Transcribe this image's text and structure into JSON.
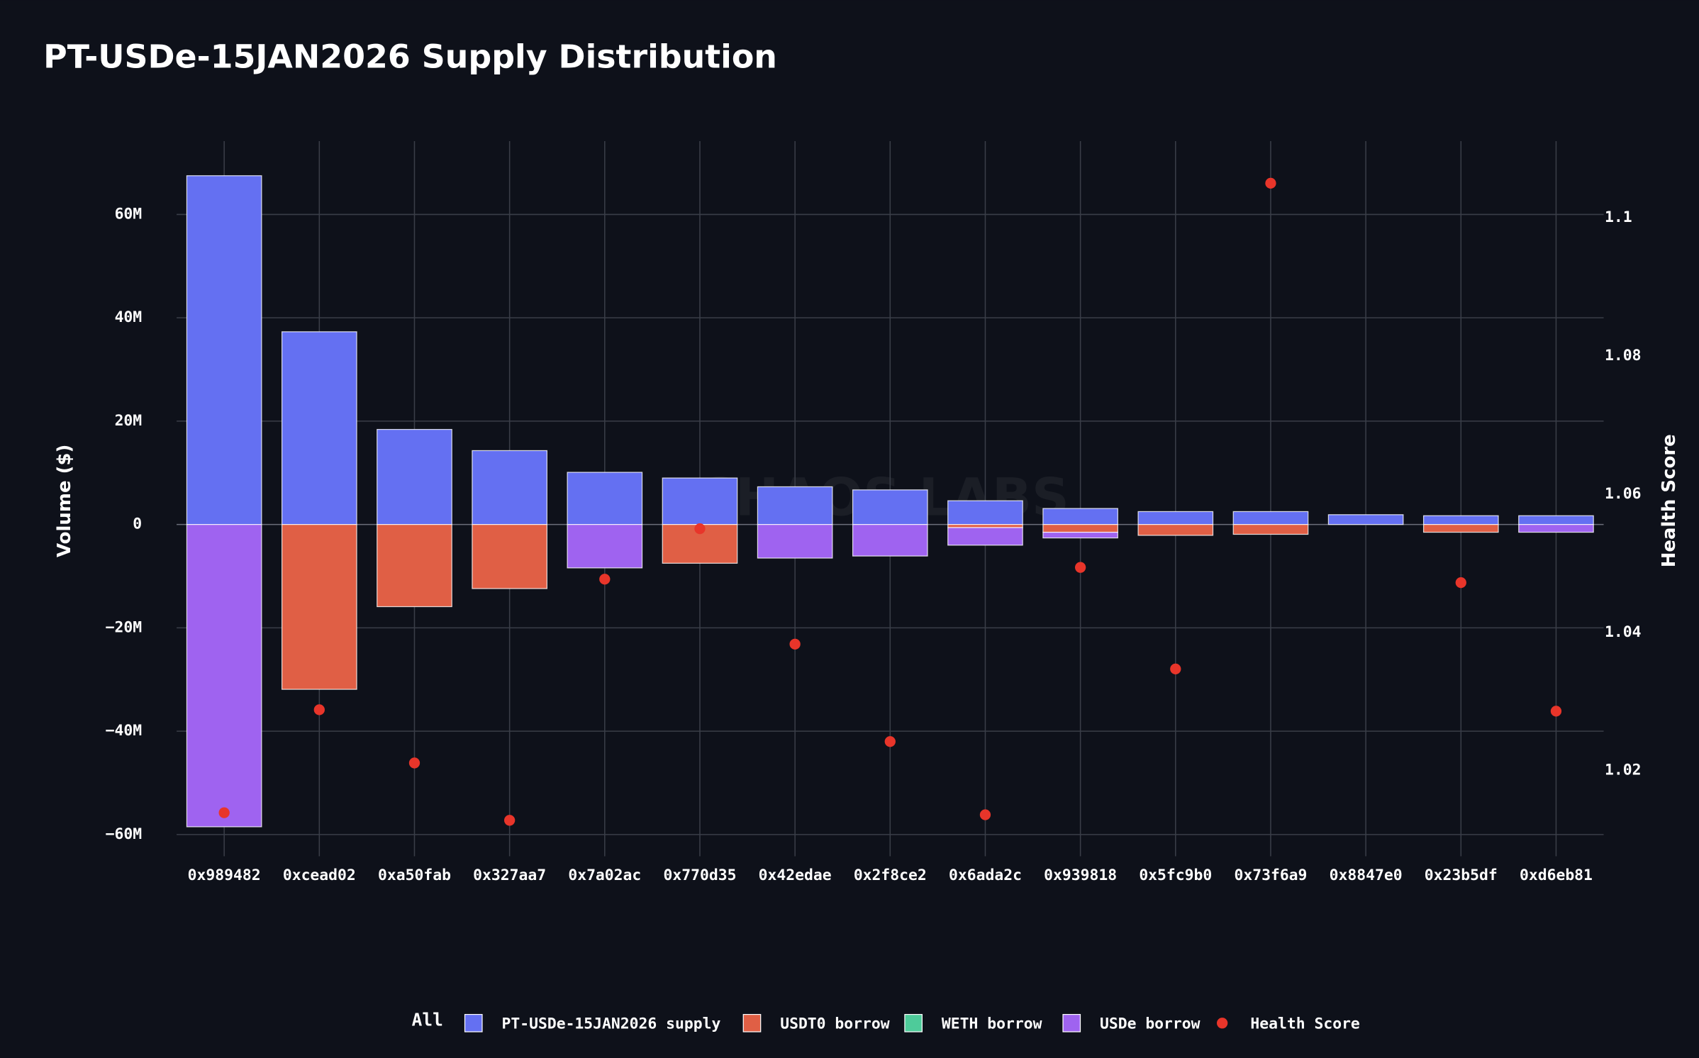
{
  "chart_data": {
    "type": "bar",
    "title": "PT-USDe-15JAN2026 Supply Distribution",
    "watermark": "CHAOS LABS",
    "y_label": "Volume ($)",
    "y2_label": "Health Score",
    "legend_toggle": "All",
    "categories": [
      "0x989482",
      "0xcead02",
      "0xa50fab",
      "0x327aa7",
      "0x7a02ac",
      "0x770d35",
      "0x42edae",
      "0x2f8ce2",
      "0x6ada2c",
      "0x939818",
      "0x5fc9b0",
      "0x73f6a9",
      "0x8847e0",
      "0x23b5df",
      "0xd6eb81"
    ],
    "series": [
      {
        "name": "PT-USDe-15JAN2026 supply",
        "type": "bar",
        "color": "#6470f2",
        "values": [
          67500000,
          37300000,
          18400000,
          14300000,
          10100000,
          9000000,
          7300000,
          6700000,
          4600000,
          3100000,
          2500000,
          2500000,
          1900000,
          1700000,
          1700000
        ]
      },
      {
        "name": "USDT0 borrow",
        "type": "bar",
        "color": "#e05f45",
        "values": [
          0,
          -31900000,
          -15900000,
          -12400000,
          0,
          -7500000,
          0,
          0,
          -600000,
          -1500000,
          -2100000,
          -1900000,
          0,
          -1500000,
          0
        ]
      },
      {
        "name": "WETH borrow",
        "type": "bar",
        "color": "#4ecb9a",
        "values": [
          0,
          0,
          0,
          0,
          0,
          0,
          0,
          0,
          0,
          0,
          0,
          0,
          0,
          0,
          0
        ]
      },
      {
        "name": "USDe borrow",
        "type": "bar",
        "color": "#9f63f0",
        "values": [
          -58500000,
          0,
          0,
          0,
          -8400000,
          0,
          -6500000,
          -6100000,
          -3400000,
          -1100000,
          0,
          0,
          0,
          0,
          -1500000
        ]
      },
      {
        "name": "Health Score",
        "type": "scatter",
        "axis": "y2",
        "color": "#e8352a",
        "values": [
          1.0139,
          1.0288,
          1.0211,
          1.0128,
          1.0477,
          1.055,
          1.0383,
          1.0242,
          1.0136,
          1.0494,
          1.0347,
          1.105,
          null,
          1.0472,
          1.0286
        ]
      }
    ],
    "ylim": [
      -64200000,
      74200000
    ],
    "yticks": [
      {
        "value": -60000000,
        "label": "−60M"
      },
      {
        "value": -40000000,
        "label": "−40M"
      },
      {
        "value": -20000000,
        "label": "−20M"
      },
      0,
      {
        "value": 20000000,
        "label": "20M"
      },
      {
        "value": 40000000,
        "label": "40M"
      },
      {
        "value": 60000000,
        "label": "60M"
      }
    ],
    "y2lim": [
      1.0076,
      1.1111
    ],
    "y2ticks": [
      1.02,
      1.04,
      1.06,
      1.08,
      1.1
    ],
    "grid": true
  }
}
